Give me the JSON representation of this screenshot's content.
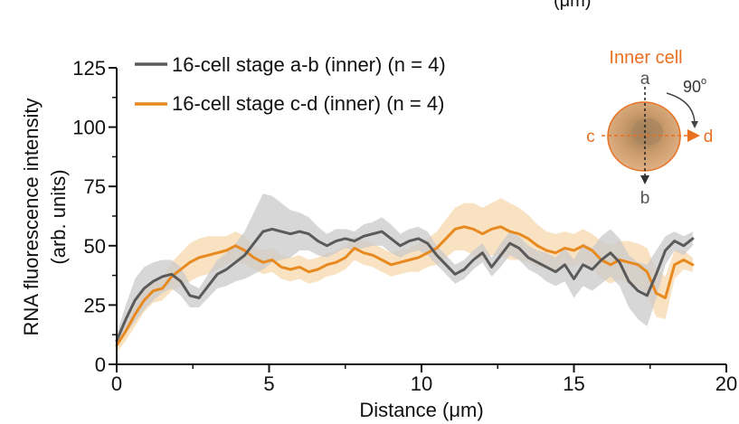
{
  "chart_data": {
    "type": "line",
    "cut_off_top_text": "(μm)",
    "xlabel": "Distance (μm)",
    "ylabel_line1": "RNA fluorescence intensity",
    "ylabel_line2": "(arb. units)",
    "xlim": [
      0,
      20
    ],
    "ylim": [
      0,
      125
    ],
    "xticks": [
      0,
      5,
      10,
      15,
      20
    ],
    "yticks": [
      0,
      25,
      50,
      75,
      100,
      125
    ],
    "xtick_labels": [
      "0",
      "5",
      "10",
      "15",
      "20"
    ],
    "ytick_labels": [
      "0",
      "25",
      "50",
      "75",
      "100",
      "125"
    ],
    "legend_position": "top-left",
    "series": [
      {
        "name": "16-cell stage a-b (inner) (n = 4)",
        "color": "#5a5a5a",
        "band_color": "#c9c9c9",
        "x": [
          0,
          0.3,
          0.6,
          0.9,
          1.2,
          1.5,
          1.8,
          2.1,
          2.4,
          2.7,
          3.0,
          3.3,
          3.6,
          3.9,
          4.2,
          4.5,
          4.8,
          5.1,
          5.4,
          5.7,
          6.0,
          6.3,
          6.6,
          6.9,
          7.2,
          7.5,
          7.8,
          8.1,
          8.4,
          8.7,
          9.0,
          9.3,
          9.6,
          9.9,
          10.2,
          10.5,
          10.8,
          11.1,
          11.4,
          11.7,
          12.0,
          12.3,
          12.6,
          12.9,
          13.2,
          13.5,
          13.8,
          14.1,
          14.4,
          14.7,
          15.0,
          15.3,
          15.6,
          15.9,
          16.2,
          16.5,
          16.8,
          17.1,
          17.4,
          17.7,
          18.0,
          18.3,
          18.6,
          18.9
        ],
        "values": [
          10,
          19,
          27,
          32,
          35,
          37,
          38,
          35,
          29,
          28,
          33,
          38,
          40,
          43,
          46,
          51,
          56,
          57,
          56,
          55,
          56,
          55,
          52,
          50,
          52,
          53,
          52,
          54,
          55,
          56,
          53,
          50,
          52,
          53,
          51,
          46,
          42,
          38,
          40,
          44,
          47,
          41,
          46,
          51,
          49,
          45,
          43,
          41,
          39,
          42,
          36,
          42,
          40,
          44,
          47,
          43,
          35,
          31,
          29,
          38,
          48,
          52,
          50,
          53
        ],
        "band_spread": [
          3,
          6,
          9,
          9,
          8,
          7,
          6,
          6,
          5,
          4,
          5,
          6,
          7,
          8,
          10,
          13,
          16,
          14,
          12,
          10,
          8,
          7,
          6,
          5,
          5,
          4,
          4,
          5,
          5,
          6,
          6,
          5,
          5,
          5,
          5,
          4,
          4,
          4,
          4,
          4,
          4,
          4,
          5,
          5,
          5,
          5,
          5,
          6,
          6,
          7,
          8,
          9,
          9,
          10,
          10,
          10,
          11,
          12,
          13,
          10,
          6,
          4,
          4,
          3
        ]
      },
      {
        "name": "16-cell stage c-d (inner) (n = 4)",
        "color": "#e8891f",
        "band_color": "#f7d8ae",
        "x": [
          0,
          0.3,
          0.6,
          0.9,
          1.2,
          1.5,
          1.8,
          2.1,
          2.4,
          2.7,
          3.0,
          3.3,
          3.6,
          3.9,
          4.2,
          4.5,
          4.8,
          5.1,
          5.4,
          5.7,
          6.0,
          6.3,
          6.6,
          6.9,
          7.2,
          7.5,
          7.8,
          8.1,
          8.4,
          8.7,
          9.0,
          9.3,
          9.6,
          9.9,
          10.2,
          10.5,
          10.8,
          11.1,
          11.4,
          11.7,
          12.0,
          12.3,
          12.6,
          12.9,
          13.2,
          13.5,
          13.8,
          14.1,
          14.4,
          14.7,
          15.0,
          15.3,
          15.6,
          15.9,
          16.2,
          16.5,
          16.8,
          17.1,
          17.4,
          17.7,
          18.0,
          18.3,
          18.6,
          18.9
        ],
        "values": [
          8,
          14,
          21,
          27,
          31,
          32,
          37,
          40,
          43,
          45,
          46,
          47,
          48,
          50,
          48,
          45,
          43,
          44,
          41,
          40,
          41,
          39,
          40,
          42,
          43,
          45,
          49,
          47,
          46,
          44,
          42,
          43,
          44,
          45,
          47,
          49,
          53,
          57,
          58,
          57,
          55,
          57,
          58,
          56,
          55,
          53,
          50,
          48,
          47,
          49,
          48,
          50,
          48,
          44,
          42,
          44,
          43,
          42,
          39,
          30,
          28,
          42,
          44,
          42
        ],
        "band_spread": [
          3,
          4,
          5,
          5,
          5,
          5,
          6,
          7,
          8,
          8,
          8,
          7,
          6,
          6,
          6,
          5,
          5,
          5,
          5,
          5,
          5,
          5,
          5,
          5,
          5,
          5,
          5,
          5,
          5,
          5,
          5,
          5,
          5,
          6,
          6,
          7,
          8,
          9,
          10,
          11,
          11,
          11,
          12,
          12,
          11,
          10,
          9,
          8,
          8,
          7,
          7,
          7,
          7,
          8,
          8,
          8,
          9,
          9,
          10,
          10,
          9,
          6,
          4,
          3
        ]
      }
    ],
    "inset": {
      "title": "Inner cell",
      "angle_label": "90",
      "angle_unit": "o",
      "label_a": "a",
      "label_b": "b",
      "label_c": "c",
      "label_d": "d"
    }
  }
}
